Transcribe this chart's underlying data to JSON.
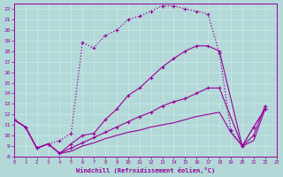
{
  "xlabel": "Windchill (Refroidissement éolien,°C)",
  "xlim": [
    0,
    23
  ],
  "ylim": [
    8,
    22.5
  ],
  "xticks": [
    0,
    1,
    2,
    3,
    4,
    5,
    6,
    7,
    8,
    9,
    10,
    11,
    12,
    13,
    14,
    15,
    16,
    17,
    18,
    19,
    20,
    21,
    22,
    23
  ],
  "yticks": [
    8,
    9,
    10,
    11,
    12,
    13,
    14,
    15,
    16,
    17,
    18,
    19,
    20,
    21,
    22
  ],
  "bg_color": "#b2d8d8",
  "line_color": "#990099",
  "grid_color": "#d0e8e8",
  "curve1_x": [
    0,
    1,
    2,
    3,
    4,
    5,
    6,
    7,
    8,
    9,
    10,
    11,
    12,
    13,
    14,
    15,
    16,
    17,
    18,
    19,
    20,
    21,
    22
  ],
  "curve1_y": [
    11.5,
    10.8,
    8.8,
    9.2,
    9.5,
    10.2,
    18.8,
    18.3,
    19.5,
    20.0,
    21.0,
    21.3,
    21.8,
    22.3,
    22.3,
    22.0,
    21.8,
    21.5,
    17.8,
    10.5,
    9.0,
    10.8,
    12.5
  ],
  "curve2_x": [
    0,
    1,
    2,
    3,
    4,
    5,
    6,
    7,
    8,
    9,
    10,
    11,
    12,
    13,
    14,
    15,
    16,
    17,
    18,
    20,
    21,
    22
  ],
  "curve2_y": [
    11.5,
    10.8,
    8.8,
    9.2,
    8.3,
    9.2,
    10.0,
    10.2,
    11.5,
    12.5,
    13.8,
    14.5,
    15.5,
    16.5,
    17.3,
    18.0,
    18.5,
    18.5,
    18.0,
    9.0,
    10.8,
    12.5
  ],
  "curve3_x": [
    0,
    1,
    2,
    3,
    4,
    5,
    6,
    7,
    8,
    9,
    10,
    11,
    12,
    13,
    14,
    15,
    16,
    17,
    18,
    20,
    21,
    22
  ],
  "curve3_y": [
    11.5,
    10.8,
    8.8,
    9.2,
    8.3,
    8.8,
    9.3,
    9.8,
    10.3,
    10.8,
    11.3,
    11.8,
    12.2,
    12.8,
    13.2,
    13.5,
    14.0,
    14.5,
    14.5,
    9.0,
    10.0,
    12.8
  ],
  "curve4_x": [
    0,
    1,
    2,
    3,
    4,
    5,
    6,
    7,
    8,
    9,
    10,
    11,
    12,
    13,
    14,
    15,
    16,
    17,
    18,
    19,
    20,
    21,
    22
  ],
  "curve4_y": [
    11.5,
    10.8,
    8.8,
    9.2,
    8.3,
    8.5,
    9.0,
    9.3,
    9.7,
    10.0,
    10.3,
    10.5,
    10.8,
    11.0,
    11.2,
    11.5,
    11.8,
    12.0,
    12.2,
    10.3,
    9.0,
    9.5,
    12.5
  ]
}
